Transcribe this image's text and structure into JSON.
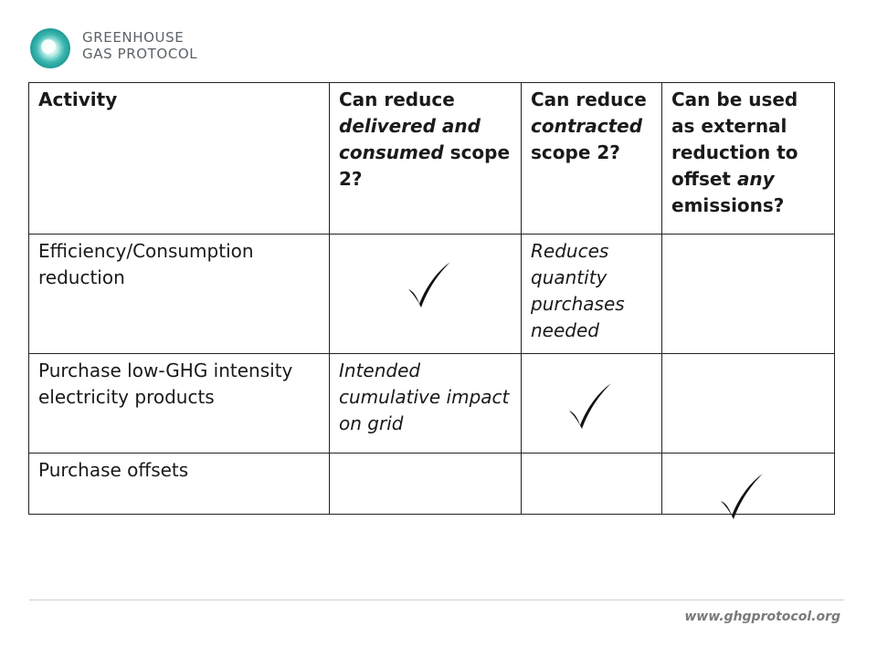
{
  "logo": {
    "line1": "GREENHOUSE",
    "line2": "GAS PROTOCOL",
    "icon": "ghg-protocol-logo-icon",
    "color": "#3bb7b0"
  },
  "table": {
    "headers": {
      "activity": "Activity",
      "col2_a": "Can reduce ",
      "col2_b": "delivered and consumed",
      "col2_c": " scope 2?",
      "col3_a": "Can reduce ",
      "col3_b": "contracted",
      "col3_c": " scope 2?",
      "col4_a": "Can be used as external reduction to offset ",
      "col4_b": "any",
      "col4_c": " emissions?"
    },
    "rows": [
      {
        "activity": "Efficiency/Consumption reduction",
        "col2": "✓",
        "col3": "Reduces quantity purchases needed",
        "col4": ""
      },
      {
        "activity": "Purchase low-GHG intensity electricity products",
        "col2": "Intended cumulative impact on grid",
        "col3": "✓",
        "col4": ""
      },
      {
        "activity": "Purchase offsets",
        "col2": "",
        "col3": "",
        "col4": "✓"
      }
    ]
  },
  "footer": {
    "url": "www.ghgprotocol.org"
  }
}
